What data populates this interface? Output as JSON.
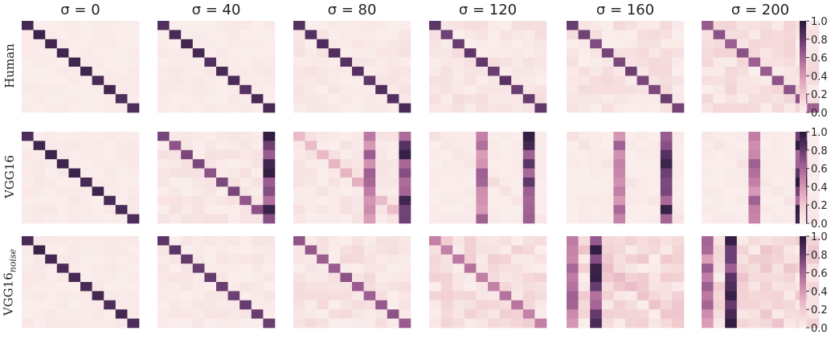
{
  "columns": [
    {
      "sigma_label": "σ = 0",
      "sigma": 0
    },
    {
      "sigma_label": "σ = 40",
      "sigma": 40
    },
    {
      "sigma_label": "σ = 80",
      "sigma": 80
    },
    {
      "sigma_label": "σ = 120",
      "sigma": 120
    },
    {
      "sigma_label": "σ = 160",
      "sigma": 160
    },
    {
      "sigma_label": "σ = 200",
      "sigma": 200
    }
  ],
  "rows": [
    {
      "label": "Human",
      "label_sub": ""
    },
    {
      "label": "VGG16",
      "label_sub": ""
    },
    {
      "label": "VGG16",
      "label_sub": "noise"
    }
  ],
  "colorbar": {
    "ticks": [
      "1.0",
      "0.8",
      "0.6",
      "0.4",
      "0.2",
      "0.0"
    ],
    "colors": [
      "#faeeec",
      "#f2d0d3",
      "#e2a8bd",
      "#c27ea6",
      "#94588d",
      "#5a3466",
      "#2b1a3b"
    ]
  },
  "chart_data": {
    "type": "heatmap",
    "grid_size": 10,
    "vmin": 0,
    "vmax": 1,
    "panels": [
      [
        {
          "diag": 0.95,
          "noise": 0.03,
          "hot_cols": []
        },
        {
          "diag": 0.93,
          "noise": 0.04,
          "hot_cols": []
        },
        {
          "diag": 0.9,
          "noise": 0.07,
          "hot_cols": []
        },
        {
          "diag": 0.85,
          "noise": 0.1,
          "hot_cols": []
        },
        {
          "diag": 0.8,
          "noise": 0.12,
          "hot_cols": []
        },
        {
          "diag": 0.7,
          "noise": 0.15,
          "hot_cols": []
        }
      ],
      [
        {
          "diag": 0.95,
          "noise": 0.04,
          "hot_cols": []
        },
        {
          "diag": 0.75,
          "noise": 0.08,
          "hot_cols": [
            9
          ]
        },
        {
          "diag": 0.3,
          "noise": 0.08,
          "hot_cols": [
            6,
            9
          ]
        },
        {
          "diag": 0.1,
          "noise": 0.03,
          "hot_cols": [
            4,
            8
          ]
        },
        {
          "diag": 0.08,
          "noise": 0.03,
          "hot_cols": [
            4,
            8
          ]
        },
        {
          "diag": 0.08,
          "noise": 0.03,
          "hot_cols": [
            4,
            8
          ]
        }
      ],
      [
        {
          "diag": 0.95,
          "noise": 0.04,
          "hot_cols": []
        },
        {
          "diag": 0.85,
          "noise": 0.06,
          "hot_cols": []
        },
        {
          "diag": 0.7,
          "noise": 0.12,
          "hot_cols": []
        },
        {
          "diag": 0.55,
          "noise": 0.18,
          "hot_cols": []
        },
        {
          "diag": 0.25,
          "noise": 0.2,
          "hot_cols": [
            0,
            2
          ]
        },
        {
          "diag": 0.15,
          "noise": 0.22,
          "hot_cols": [
            0,
            2
          ]
        }
      ]
    ]
  }
}
